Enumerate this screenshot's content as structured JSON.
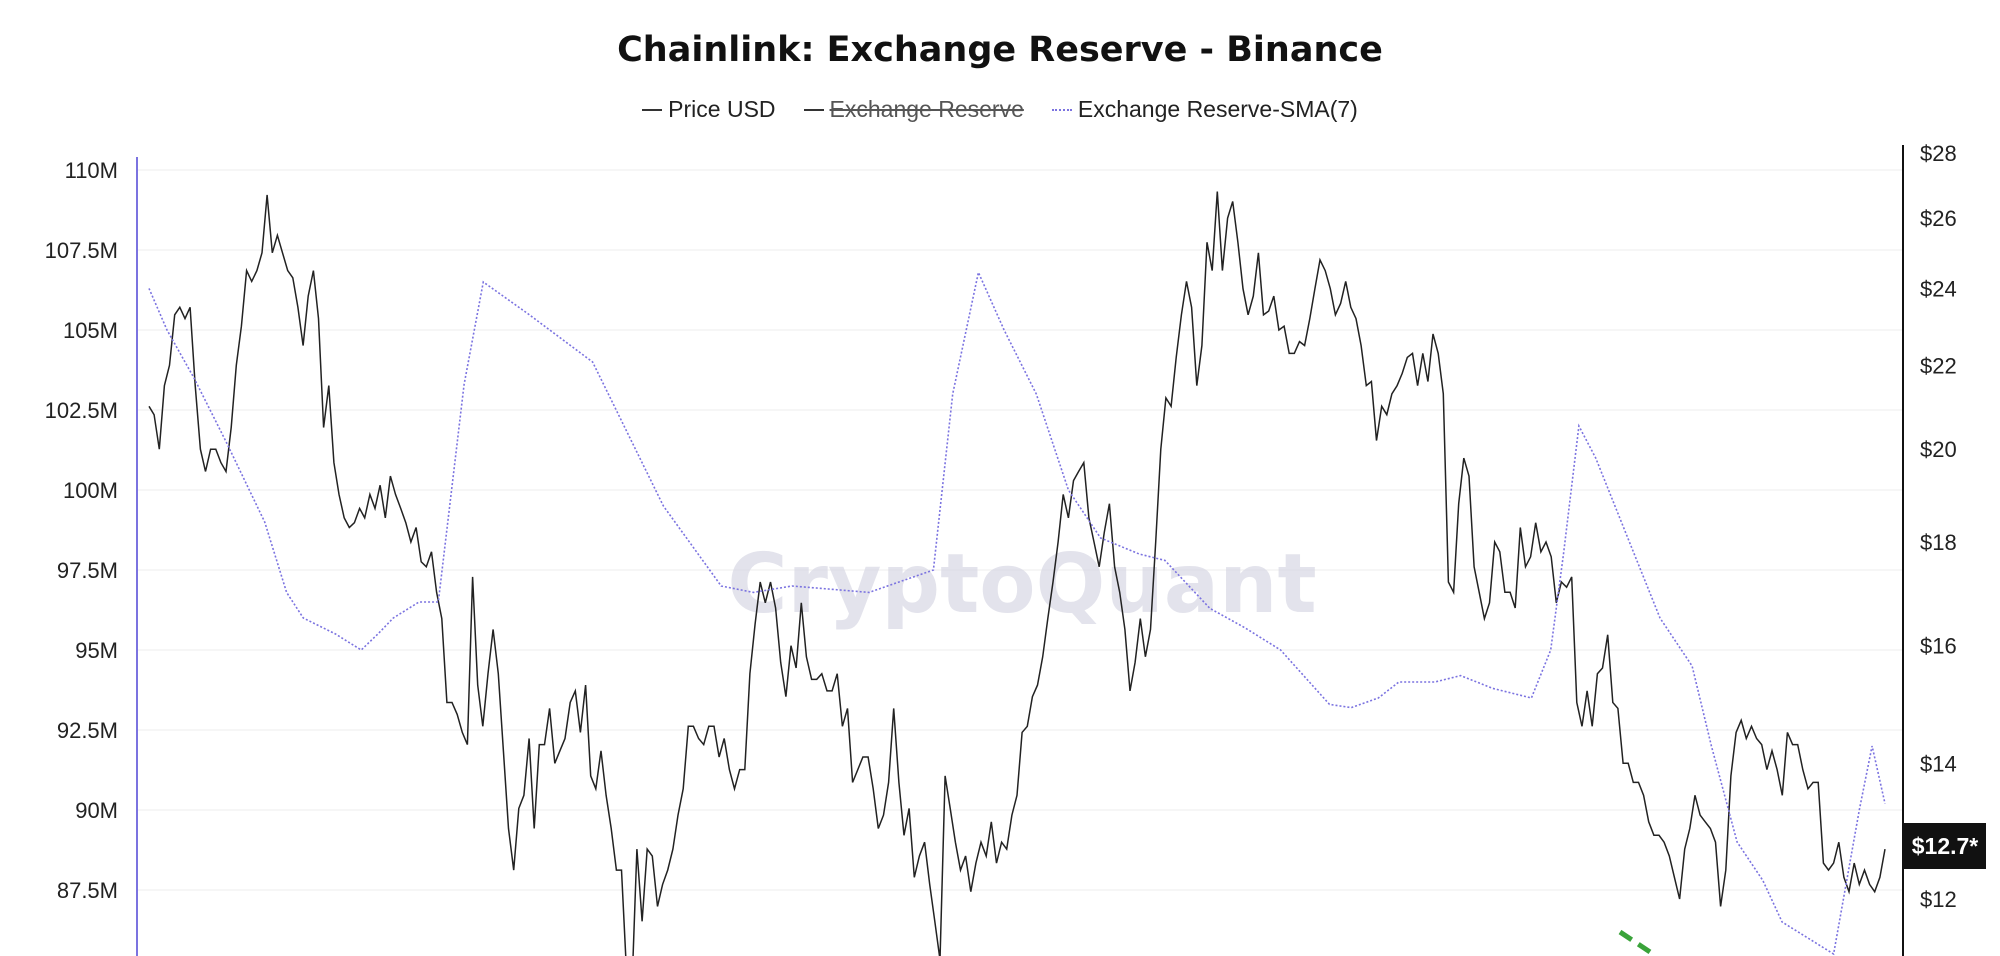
{
  "chart_data": {
    "type": "line",
    "title": "Chainlink: Exchange Reserve - Binance",
    "legend": [
      {
        "name": "Price USD",
        "style": "solid",
        "color": "#333333",
        "hidden": false
      },
      {
        "name": "Exchange Reserve",
        "style": "solid",
        "color": "#333333",
        "hidden": true
      },
      {
        "name": "Exchange Reserve-SMA(7)",
        "style": "dotted",
        "color": "#7b73e0",
        "hidden": false
      }
    ],
    "legend_placement": "top-center",
    "y_left": {
      "ticks": [
        "110M",
        "107.5M",
        "105M",
        "102.5M",
        "100M",
        "97.5M",
        "95M",
        "92.5M",
        "90M",
        "87.5M"
      ],
      "tick_values": [
        110,
        107.5,
        105,
        102.5,
        100,
        97.5,
        95,
        92.5,
        90,
        87.5
      ],
      "unit": "M"
    },
    "y_right": {
      "ticks": [
        "$28",
        "$26",
        "$24",
        "$22",
        "$20",
        "$18",
        "$16",
        "$14",
        "$12"
      ],
      "tick_values": [
        28,
        26,
        24,
        22,
        20,
        18,
        16,
        14,
        12
      ],
      "scale": "log"
    },
    "grid": true,
    "watermark": "CryptoQuant",
    "current_price_label": "$12.7*",
    "series": [
      {
        "name": "Price USD",
        "axis": "right",
        "color": "#222222",
        "values": [
          21,
          20.8,
          20,
          21.5,
          22,
          23.3,
          23.5,
          23.2,
          23.5,
          21.5,
          20,
          19.5,
          20,
          20,
          19.7,
          19.5,
          20.5,
          22,
          23,
          24.5,
          24.2,
          24.5,
          25,
          26.7,
          25,
          25.5,
          25,
          24.5,
          24.3,
          23.5,
          22.5,
          23.8,
          24.5,
          23.2,
          20.5,
          21.5,
          19.7,
          19,
          18.5,
          18.3,
          18.4,
          18.7,
          18.5,
          19,
          18.7,
          19.2,
          18.5,
          19.4,
          19,
          18.7,
          18.4,
          18,
          18.3,
          17.6,
          17.5,
          17.8,
          17,
          16.5,
          15,
          15,
          14.8,
          14.5,
          14.3,
          17.3,
          15.3,
          14.6,
          15.5,
          16.3,
          15.5,
          14.2,
          13,
          12.4,
          13.3,
          13.5,
          14.4,
          13,
          14.3,
          14.3,
          14.9,
          14,
          14.2,
          14.4,
          15,
          15.2,
          14.5,
          15.3,
          13.8,
          13.6,
          14.2,
          13.5,
          13,
          12.4,
          12.4,
          11,
          10.8,
          12.7,
          11.7,
          12.7,
          12.6,
          11.9,
          12.2,
          12.4,
          12.7,
          13.2,
          13.6,
          14.6,
          14.6,
          14.4,
          14.3,
          14.6,
          14.6,
          14.1,
          14.4,
          13.9,
          13.6,
          13.9,
          13.9,
          15.5,
          16.4,
          17.2,
          16.8,
          17.2,
          16.7,
          15.7,
          15.1,
          16,
          15.6,
          16.8,
          15.8,
          15.4,
          15.4,
          15.5,
          15.2,
          15.2,
          15.5,
          14.6,
          14.9,
          13.7,
          13.9,
          14.1,
          14.1,
          13.6,
          13,
          13.2,
          13.7,
          14.9,
          13.7,
          12.9,
          13.3,
          12.3,
          12.6,
          12.8,
          12.2,
          11.7,
          11.2,
          13.8,
          13.3,
          12.8,
          12.4,
          12.6,
          12.1,
          12.5,
          12.8,
          12.6,
          13.1,
          12.5,
          12.8,
          12.7,
          13.2,
          13.5,
          14.5,
          14.6,
          15.1,
          15.3,
          15.8,
          16.5,
          17.2,
          18,
          19,
          18.5,
          19.3,
          19.5,
          19.7,
          18.5,
          18,
          17.5,
          18.2,
          18.8,
          17.5,
          17,
          16.3,
          15.2,
          15.7,
          16.5,
          15.8,
          16.3,
          18,
          20,
          21.2,
          21,
          22.2,
          23.3,
          24.2,
          23.5,
          21.5,
          22.5,
          25.3,
          24.5,
          26.8,
          24.5,
          26,
          26.5,
          25.3,
          24,
          23.3,
          23.8,
          25,
          23.3,
          23.4,
          23.8,
          22.9,
          23,
          22.3,
          22.3,
          22.6,
          22.5,
          23.2,
          24,
          24.8,
          24.5,
          24,
          23.3,
          23.6,
          24.2,
          23.5,
          23.2,
          22.5,
          21.5,
          21.6,
          20.2,
          21,
          20.8,
          21.3,
          21.5,
          21.8,
          22.2,
          22.3,
          21.5,
          22.3,
          21.6,
          22.8,
          22.3,
          21.3,
          17.2,
          17,
          18.8,
          19.8,
          19.4,
          17.5,
          17,
          16.5,
          16.8,
          18,
          17.8,
          17,
          17,
          16.7,
          18.3,
          17.5,
          17.7,
          18.4,
          17.8,
          18,
          17.7,
          16.8,
          17.2,
          17.1,
          17.3,
          15,
          14.6,
          15.2,
          14.6,
          15.5,
          15.6,
          16.2,
          15,
          14.9,
          14,
          14,
          13.7,
          13.7,
          13.5,
          13.1,
          12.9,
          12.9,
          12.8,
          12.6,
          12.3,
          12,
          12.7,
          13,
          13.5,
          13.2,
          13.1,
          13,
          12.8,
          11.9,
          12.4,
          13.8,
          14.5,
          14.7,
          14.4,
          14.6,
          14.4,
          14.3,
          13.9,
          14.2,
          13.9,
          13.5,
          14.5,
          14.3,
          14.3,
          13.9,
          13.6,
          13.7,
          13.7,
          12.5,
          12.4,
          12.5,
          12.8,
          12.3,
          12.1,
          12.5,
          12.2,
          12.4,
          12.2,
          12.1,
          12.3,
          12.7
        ]
      },
      {
        "name": "Exchange Reserve-SMA(7)",
        "axis": "left",
        "color": "#7b73e0",
        "points": [
          [
            0,
            106.3
          ],
          [
            14,
            105
          ],
          [
            35,
            103.5
          ],
          [
            60,
            101.5
          ],
          [
            90,
            99
          ],
          [
            107,
            96.8
          ],
          [
            120,
            96
          ],
          [
            145,
            95.5
          ],
          [
            165,
            95
          ],
          [
            178,
            95.5
          ],
          [
            190,
            96
          ],
          [
            210,
            96.5
          ],
          [
            225,
            96.5
          ],
          [
            245,
            103.3
          ],
          [
            260,
            106.5
          ],
          [
            295,
            105.5
          ],
          [
            345,
            104
          ],
          [
            400,
            99.5
          ],
          [
            445,
            97
          ],
          [
            470,
            96.8
          ],
          [
            500,
            97
          ],
          [
            560,
            96.8
          ],
          [
            610,
            97.5
          ],
          [
            625,
            103
          ],
          [
            645,
            106.8
          ],
          [
            665,
            105
          ],
          [
            690,
            103
          ],
          [
            715,
            100
          ],
          [
            740,
            98.5
          ],
          [
            770,
            98
          ],
          [
            790,
            97.8
          ],
          [
            825,
            96.3
          ],
          [
            852,
            95.7
          ],
          [
            880,
            95
          ],
          [
            918,
            93.3
          ],
          [
            935,
            93.2
          ],
          [
            956,
            93.5
          ],
          [
            972,
            94
          ],
          [
            1000,
            94
          ],
          [
            1020,
            94.2
          ],
          [
            1045,
            93.8
          ],
          [
            1075,
            93.5
          ],
          [
            1090,
            95
          ],
          [
            1100,
            98
          ],
          [
            1112,
            102
          ],
          [
            1125,
            101
          ],
          [
            1150,
            98.5
          ],
          [
            1175,
            96
          ],
          [
            1200,
            94.5
          ],
          [
            1215,
            92
          ],
          [
            1235,
            89
          ],
          [
            1255,
            87.8
          ],
          [
            1270,
            86.5
          ],
          [
            1310,
            85.5
          ],
          [
            1330,
            90
          ],
          [
            1340,
            92
          ],
          [
            1350,
            90.2
          ]
        ]
      }
    ]
  }
}
